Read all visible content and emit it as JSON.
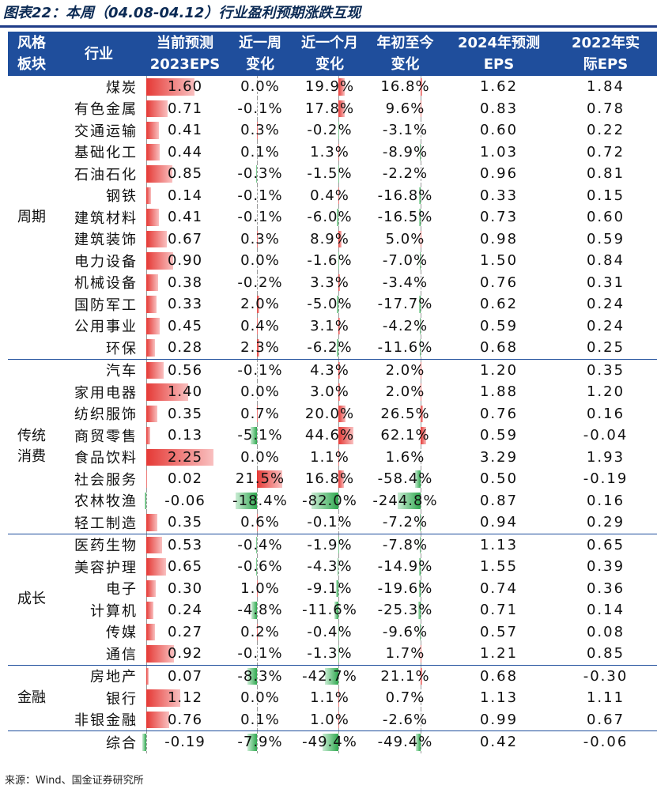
{
  "title": "图表22：本周（04.08-04.12）行业盈利预期涨跌互现",
  "source": "来源：Wind、国金证券研究所",
  "headers": [
    "风格\n板块",
    "行业",
    "当前预测\n2023EPS",
    "近一周\n变化",
    "近一个月\n变化",
    "年初至今\n变化",
    "2024年预测\nEPS",
    "2022年实\n际EPS"
  ],
  "colors": {
    "header_bg": "#1f4e9c",
    "positive_bar": "#e53935",
    "negative_bar": "#2fa84f"
  },
  "groups": [
    {
      "style": "周期",
      "rows": [
        {
          "industry": "煤炭",
          "eps2023": "1.60",
          "week": "0.0%",
          "month": "19.9%",
          "ytd": "16.8%",
          "eps2024": "1.62",
          "eps2022": "1.84"
        },
        {
          "industry": "有色金属",
          "eps2023": "0.71",
          "week": "-0.1%",
          "month": "17.8%",
          "ytd": "9.6%",
          "eps2024": "0.83",
          "eps2022": "0.78"
        },
        {
          "industry": "交通运输",
          "eps2023": "0.41",
          "week": "0.3%",
          "month": "-0.2%",
          "ytd": "-3.1%",
          "eps2024": "0.60",
          "eps2022": "0.22"
        },
        {
          "industry": "基础化工",
          "eps2023": "0.44",
          "week": "0.1%",
          "month": "1.3%",
          "ytd": "-8.9%",
          "eps2024": "1.03",
          "eps2022": "0.72"
        },
        {
          "industry": "石油石化",
          "eps2023": "0.85",
          "week": "-0.3%",
          "month": "-1.5%",
          "ytd": "-2.2%",
          "eps2024": "0.96",
          "eps2022": "0.81"
        },
        {
          "industry": "钢铁",
          "eps2023": "0.14",
          "week": "-0.1%",
          "month": "0.4%",
          "ytd": "-16.8%",
          "eps2024": "0.33",
          "eps2022": "0.15"
        },
        {
          "industry": "建筑材料",
          "eps2023": "0.41",
          "week": "-0.1%",
          "month": "-6.0%",
          "ytd": "-16.5%",
          "eps2024": "0.73",
          "eps2022": "0.60"
        },
        {
          "industry": "建筑装饰",
          "eps2023": "0.67",
          "week": "0.3%",
          "month": "8.9%",
          "ytd": "5.0%",
          "eps2024": "0.98",
          "eps2022": "0.59"
        },
        {
          "industry": "电力设备",
          "eps2023": "0.90",
          "week": "0.0%",
          "month": "-1.6%",
          "ytd": "-7.0%",
          "eps2024": "1.50",
          "eps2022": "0.84"
        },
        {
          "industry": "机械设备",
          "eps2023": "0.38",
          "week": "-0.2%",
          "month": "3.3%",
          "ytd": "-3.4%",
          "eps2024": "0.76",
          "eps2022": "0.31"
        },
        {
          "industry": "国防军工",
          "eps2023": "0.33",
          "week": "2.0%",
          "month": "-5.0%",
          "ytd": "-17.7%",
          "eps2024": "0.62",
          "eps2022": "0.24"
        },
        {
          "industry": "公用事业",
          "eps2023": "0.45",
          "week": "0.4%",
          "month": "3.1%",
          "ytd": "-4.2%",
          "eps2024": "0.59",
          "eps2022": "0.24"
        },
        {
          "industry": "环保",
          "eps2023": "0.28",
          "week": "2.3%",
          "month": "-6.2%",
          "ytd": "-11.6%",
          "eps2024": "0.68",
          "eps2022": "0.25"
        }
      ]
    },
    {
      "style": "传统\n消费",
      "rows": [
        {
          "industry": "汽车",
          "eps2023": "0.56",
          "week": "-0.1%",
          "month": "4.3%",
          "ytd": "2.0%",
          "eps2024": "1.20",
          "eps2022": "0.35"
        },
        {
          "industry": "家用电器",
          "eps2023": "1.40",
          "week": "0.0%",
          "month": "3.0%",
          "ytd": "2.0%",
          "eps2024": "1.88",
          "eps2022": "1.20"
        },
        {
          "industry": "纺织服饰",
          "eps2023": "0.35",
          "week": "0.7%",
          "month": "20.0%",
          "ytd": "26.5%",
          "eps2024": "0.76",
          "eps2022": "0.16"
        },
        {
          "industry": "商贸零售",
          "eps2023": "0.13",
          "week": "-5.1%",
          "month": "44.6%",
          "ytd": "62.1%",
          "eps2024": "0.59",
          "eps2022": "-0.04"
        },
        {
          "industry": "食品饮料",
          "eps2023": "2.25",
          "week": "0.0%",
          "month": "1.1%",
          "ytd": "1.6%",
          "eps2024": "3.29",
          "eps2022": "1.93"
        },
        {
          "industry": "社会服务",
          "eps2023": "0.02",
          "week": "21.5%",
          "month": "16.8%",
          "ytd": "-58.4%",
          "eps2024": "0.50",
          "eps2022": "-0.19"
        },
        {
          "industry": "农林牧渔",
          "eps2023": "-0.06",
          "week": "-18.4%",
          "month": "-82.0%",
          "ytd": "-244.8%",
          "eps2024": "0.87",
          "eps2022": "0.16"
        },
        {
          "industry": "轻工制造",
          "eps2023": "0.35",
          "week": "0.6%",
          "month": "-0.1%",
          "ytd": "-7.2%",
          "eps2024": "0.94",
          "eps2022": "0.29"
        }
      ]
    },
    {
      "style": "成长",
      "rows": [
        {
          "industry": "医药生物",
          "eps2023": "0.53",
          "week": "-0.4%",
          "month": "-1.9%",
          "ytd": "-7.8%",
          "eps2024": "1.13",
          "eps2022": "0.65"
        },
        {
          "industry": "美容护理",
          "eps2023": "0.65",
          "week": "-0.6%",
          "month": "-4.3%",
          "ytd": "-14.9%",
          "eps2024": "1.55",
          "eps2022": "0.39"
        },
        {
          "industry": "电子",
          "eps2023": "0.30",
          "week": "1.0%",
          "month": "-9.1%",
          "ytd": "-19.6%",
          "eps2024": "0.74",
          "eps2022": "0.36"
        },
        {
          "industry": "计算机",
          "eps2023": "0.24",
          "week": "-4.8%",
          "month": "-11.6%",
          "ytd": "-25.3%",
          "eps2024": "0.71",
          "eps2022": "0.14"
        },
        {
          "industry": "传媒",
          "eps2023": "0.27",
          "week": "0.2%",
          "month": "-0.4%",
          "ytd": "-9.6%",
          "eps2024": "0.57",
          "eps2022": "0.08"
        },
        {
          "industry": "通信",
          "eps2023": "0.92",
          "week": "-0.1%",
          "month": "-1.3%",
          "ytd": "1.7%",
          "eps2024": "1.21",
          "eps2022": "0.85"
        }
      ]
    },
    {
      "style": "金融",
      "rows": [
        {
          "industry": "房地产",
          "eps2023": "0.07",
          "week": "-8.3%",
          "month": "-42.7%",
          "ytd": "21.1%",
          "eps2024": "0.68",
          "eps2022": "-0.30"
        },
        {
          "industry": "银行",
          "eps2023": "1.12",
          "week": "0.0%",
          "month": "1.1%",
          "ytd": "0.7%",
          "eps2024": "1.13",
          "eps2022": "1.11"
        },
        {
          "industry": "非银金融",
          "eps2023": "0.76",
          "week": "0.1%",
          "month": "1.0%",
          "ytd": "-2.6%",
          "eps2024": "0.99",
          "eps2022": "0.67"
        }
      ]
    }
  ],
  "total": {
    "industry": "综合",
    "eps2023": "-0.19",
    "week": "-7.9%",
    "month": "-49.4%",
    "ytd": "-49.4%",
    "eps2024": "0.42",
    "eps2022": "-0.06"
  }
}
